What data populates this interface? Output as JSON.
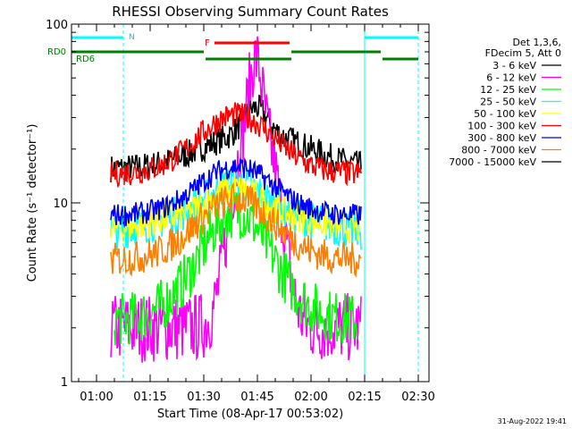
{
  "footer": {
    "timestamp": "31-Aug-2022 19:41"
  },
  "chart_data": {
    "type": "line",
    "title": "RHESSI Observing Summary Count Rates",
    "xlabel": "Start Time (08-Apr-17 00:53:02)",
    "ylabel": "Count Rate (s⁻¹ detector⁻¹)",
    "x_unit": "minutes since 00:53:02",
    "xlim": [
      0,
      100
    ],
    "ylim": [
      1,
      100
    ],
    "yscale": "log",
    "grid": false,
    "legend_position": "top-right",
    "x_ticks": [
      {
        "label": "01:00",
        "value": 7
      },
      {
        "label": "01:15",
        "value": 22
      },
      {
        "label": "01:30",
        "value": 37
      },
      {
        "label": "01:45",
        "value": 52
      },
      {
        "label": "02:00",
        "value": 67
      },
      {
        "label": "02:15",
        "value": 82
      },
      {
        "label": "02:30",
        "value": 97
      }
    ],
    "y_ticks": [
      {
        "label": "1",
        "value": 1
      },
      {
        "label": "10",
        "value": 10
      },
      {
        "label": "100",
        "value": 100
      }
    ],
    "legend_header": [
      "Det 1,3,6,",
      "FDecim 5, Att 0"
    ],
    "series": [
      {
        "name": "3 - 6 keV",
        "color": "#000000",
        "base": 15.5,
        "start": 11,
        "end": 81,
        "peak": 34,
        "peak_at": 51.5,
        "width": 3.0,
        "hump": 19,
        "noise": 0.18
      },
      {
        "name": "6 - 12 keV",
        "color": "#ff00ff",
        "base": 2.0,
        "start": 11,
        "end": 81,
        "peak": 64,
        "peak_at": 51.5,
        "width": 1.4,
        "hump": 9,
        "noise": 0.45
      },
      {
        "name": "12 - 25 keV",
        "color": "#00ff00",
        "base": 2.2,
        "start": 12,
        "end": 80,
        "peak": 9,
        "peak_at": 46,
        "width": 6,
        "hump": 3,
        "noise": 0.35
      },
      {
        "name": "25 - 50 keV",
        "color": "#00ffff",
        "base": 6.5,
        "start": 11,
        "end": 81,
        "peak": 13,
        "peak_at": 46,
        "width": 6,
        "hump": 8,
        "noise": 0.25
      },
      {
        "name": "50 - 100 keV",
        "color": "#ffff00",
        "base": 6.8,
        "start": 11,
        "end": 81,
        "peak": 12,
        "peak_at": 46,
        "width": 6,
        "hump": 8,
        "noise": 0.2
      },
      {
        "name": "100 - 300 keV",
        "color": "#ff0000",
        "base": 14.5,
        "start": 11,
        "end": 81,
        "peak": 31,
        "peak_at": 46,
        "width": 8,
        "hump": 2,
        "noise": 0.17
      },
      {
        "name": "300 - 800 keV",
        "color": "#0000ff",
        "base": 8.5,
        "start": 11,
        "end": 81,
        "peak": 16,
        "peak_at": 46,
        "width": 8,
        "hump": 2,
        "noise": 0.15
      },
      {
        "name": "800 - 7000 keV",
        "color": "#ff8000",
        "base": 4.8,
        "start": 11,
        "end": 81,
        "peak": 10.5,
        "peak_at": 46,
        "width": 8,
        "hump": 2,
        "noise": 0.22
      },
      {
        "name": "7000 - 15000 keV",
        "color": "#000000",
        "base": 0,
        "start": 11,
        "end": 81,
        "peak": 0,
        "peak_at": 46,
        "width": 1,
        "hump": 1,
        "noise": 0
      }
    ],
    "annotations": {
      "night_label": "N",
      "flare_label": "F",
      "rd0_label": "RD0",
      "rd6_label": "RD6",
      "night_bars": [
        {
          "x1": 0,
          "x2": 14.5,
          "color": "#00ffff"
        },
        {
          "x1": 82,
          "x2": 97,
          "color": "#00ffff"
        }
      ],
      "flare_bar": {
        "x1": 40,
        "x2": 61,
        "color": "#ff0000"
      },
      "rd0_bars": [
        {
          "x1": 0,
          "x2": 37,
          "color": "#008000"
        },
        {
          "x1": 61.5,
          "x2": 86.5,
          "color": "#008000"
        }
      ],
      "rd6_bars": [
        {
          "x1": 37.5,
          "x2": 61.5,
          "color": "#008000"
        },
        {
          "x1": 87,
          "x2": 97,
          "color": "#008000"
        }
      ],
      "vlines_solid": [
        {
          "x": 0,
          "color": "#00ffff"
        },
        {
          "x": 82,
          "color": "#00ffff"
        }
      ],
      "vlines_dashed": [
        {
          "x": 14.5,
          "color": "#00ffff"
        },
        {
          "x": 97,
          "color": "#00ffff"
        }
      ]
    }
  }
}
